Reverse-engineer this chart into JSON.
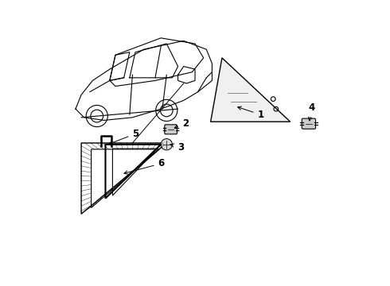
{
  "background_color": "#ffffff",
  "line_color": "#000000",
  "label_color": "#000000",
  "lw_thin": 0.8,
  "lw_med": 1.0
}
